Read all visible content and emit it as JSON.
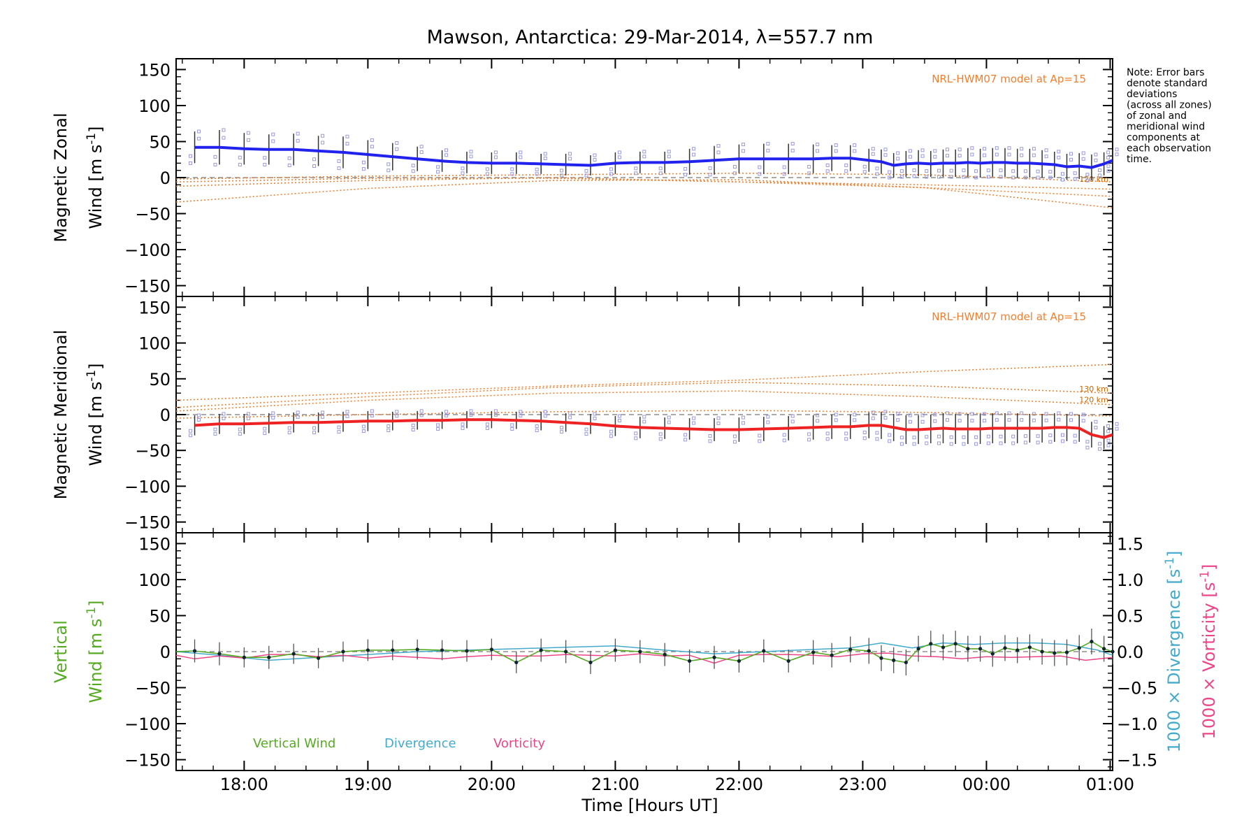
{
  "chart_data": {
    "type": "line",
    "title": "Mawson, Antarctica: 29-Mar-2014, λ=557.7 nm",
    "xlabel": "Time [Hours UT]",
    "x_unit": "hours UT (values >24 are after midnight)",
    "xlim": [
      17.45,
      25.02
    ],
    "xticks": [
      {
        "value": 18,
        "label": "18:00"
      },
      {
        "value": 19,
        "label": "19:00"
      },
      {
        "value": 20,
        "label": "20:00"
      },
      {
        "value": 21,
        "label": "21:00"
      },
      {
        "value": 22,
        "label": "22:00"
      },
      {
        "value": 23,
        "label": "23:00"
      },
      {
        "value": 24,
        "label": "00:00"
      },
      {
        "value": 25,
        "label": "01:00"
      }
    ],
    "note": "Note: Error bars denote standard deviations (across all zones) of zonal and meridional wind components at each observation time.",
    "note_lines": [
      "Note: Error bars",
      "denote standard",
      "deviations",
      "(across all zones)",
      "of zonal and",
      "meridional wind",
      "components at",
      "each observation",
      "time."
    ],
    "panels": [
      {
        "name": "zonal",
        "ylabel_line1": "Magnetic Zonal",
        "ylabel_line2": "Wind [m s",
        "ylabel_sup": "-1",
        "ylabel_close": "]",
        "ylim": [
          -165,
          165
        ],
        "yticks": [
          150,
          100,
          50,
          0,
          -50,
          -100,
          -150
        ],
        "ytick_labels": [
          "150",
          "100",
          "50",
          "0",
          "−50",
          "−100",
          "−150"
        ],
        "model_label": "NRL-HWM07 model at Ap=15",
        "model_alt_labels": [
          {
            "text": "120 km",
            "x": 24.75,
            "y": -6
          }
        ],
        "colors": {
          "series": "#2222ee",
          "points": "#9999dd",
          "model": "#f08030",
          "errorbar": "#333333"
        },
        "series": {
          "name": "Magnetic Zonal Wind",
          "x": [
            17.6,
            17.8,
            18.0,
            18.2,
            18.4,
            18.6,
            18.8,
            19.0,
            19.2,
            19.4,
            19.6,
            19.8,
            20.0,
            20.2,
            20.4,
            20.6,
            20.8,
            21.0,
            21.2,
            21.4,
            21.6,
            21.8,
            22.0,
            22.2,
            22.4,
            22.6,
            22.75,
            22.9,
            23.05,
            23.15,
            23.25,
            23.35,
            23.45,
            23.55,
            23.65,
            23.75,
            23.85,
            23.95,
            24.05,
            24.15,
            24.25,
            24.35,
            24.45,
            24.55,
            24.65,
            24.75,
            24.85,
            24.95,
            25.02
          ],
          "y": [
            42,
            42,
            40,
            39,
            39,
            37,
            35,
            32,
            29,
            26,
            23,
            21,
            20,
            20,
            19,
            18,
            17,
            20,
            21,
            21,
            22,
            24,
            26,
            26,
            26,
            26,
            27,
            27,
            24,
            22,
            17,
            19,
            20,
            19,
            20,
            20,
            21,
            20,
            21,
            21,
            20,
            20,
            19,
            18,
            15,
            16,
            14,
            19,
            24
          ],
          "err": [
            22,
            24,
            22,
            21,
            22,
            21,
            22,
            20,
            19,
            17,
            15,
            15,
            15,
            15,
            14,
            15,
            14,
            15,
            15,
            15,
            18,
            20,
            20,
            21,
            21,
            20,
            18,
            18,
            16,
            17,
            17,
            18,
            18,
            18,
            19,
            19,
            20,
            20,
            20,
            20,
            20,
            20,
            19,
            18,
            18,
            18,
            18,
            16,
            15
          ]
        },
        "models": [
          {
            "x": [
              17.45,
              19.0,
              20.5,
              22.0,
              23.5,
              25.02
            ],
            "y": [
              -34,
              -15,
              -4,
              -3,
              -14,
              -42
            ]
          },
          {
            "x": [
              17.45,
              19.0,
              20.5,
              22.0,
              23.5,
              25.02
            ],
            "y": [
              -12,
              -4,
              0,
              -6,
              -14,
              -26
            ]
          },
          {
            "x": [
              17.45,
              19.0,
              20.5,
              22.0,
              23.5,
              25.02
            ],
            "y": [
              -6,
              -1,
              -1,
              -6,
              -10,
              -16
            ]
          },
          {
            "x": [
              17.45,
              19.0,
              20.5,
              22.0,
              23.5,
              25.02
            ],
            "y": [
              -2,
              2,
              4,
              6,
              4,
              -6
            ]
          }
        ]
      },
      {
        "name": "meridional",
        "ylabel_line1": "Magnetic Meridional",
        "ylabel_line2": "Wind [m s",
        "ylabel_sup": "-1",
        "ylabel_close": "]",
        "ylim": [
          -165,
          165
        ],
        "yticks": [
          150,
          100,
          50,
          0,
          -50,
          -100,
          -150
        ],
        "ytick_labels": [
          "150",
          "100",
          "50",
          "0",
          "−50",
          "−100",
          "−150"
        ],
        "model_label": "NRL-HWM07 model at Ap=15",
        "model_alt_labels": [
          {
            "text": "130 km",
            "x": 24.75,
            "y": 32
          },
          {
            "text": "120 km",
            "x": 24.75,
            "y": 17
          }
        ],
        "colors": {
          "series": "#ee2222",
          "points": "#9999dd",
          "model": "#f08030",
          "errorbar": "#333333"
        },
        "series": {
          "name": "Magnetic Meridional Wind",
          "x": [
            17.6,
            17.8,
            18.0,
            18.2,
            18.4,
            18.6,
            18.8,
            19.0,
            19.2,
            19.4,
            19.6,
            19.8,
            20.0,
            20.2,
            20.4,
            20.6,
            20.8,
            21.0,
            21.2,
            21.4,
            21.6,
            21.8,
            22.0,
            22.2,
            22.4,
            22.6,
            22.75,
            22.9,
            23.05,
            23.15,
            23.25,
            23.35,
            23.45,
            23.55,
            23.65,
            23.75,
            23.85,
            23.95,
            24.05,
            24.15,
            24.25,
            24.35,
            24.45,
            24.55,
            24.65,
            24.75,
            24.85,
            24.95,
            25.02
          ],
          "y": [
            -15,
            -13,
            -13,
            -12,
            -11,
            -11,
            -10,
            -9,
            -9,
            -8,
            -8,
            -7,
            -7,
            -8,
            -9,
            -11,
            -13,
            -16,
            -18,
            -19,
            -20,
            -21,
            -21,
            -20,
            -19,
            -18,
            -17,
            -17,
            -15,
            -15,
            -18,
            -21,
            -21,
            -20,
            -19,
            -20,
            -20,
            -20,
            -19,
            -19,
            -19,
            -19,
            -19,
            -18,
            -18,
            -19,
            -28,
            -32,
            -28
          ],
          "err": [
            14,
            14,
            14,
            14,
            14,
            14,
            14,
            14,
            13,
            13,
            12,
            12,
            12,
            12,
            13,
            13,
            14,
            14,
            15,
            15,
            15,
            16,
            17,
            17,
            17,
            17,
            17,
            17,
            18,
            19,
            19,
            20,
            20,
            20,
            21,
            21,
            21,
            21,
            21,
            21,
            21,
            20,
            20,
            20,
            19,
            19,
            18,
            16,
            15
          ]
        },
        "models": [
          {
            "x": [
              17.45,
              19.0,
              20.5,
              22.0,
              23.5,
              25.02
            ],
            "y": [
              20,
              30,
              40,
              48,
              60,
              70
            ]
          },
          {
            "x": [
              17.45,
              19.0,
              20.5,
              22.0,
              23.5,
              25.02
            ],
            "y": [
              10,
              25,
              38,
              45,
              40,
              30
            ]
          },
          {
            "x": [
              17.45,
              19.0,
              20.5,
              22.0,
              23.5,
              25.02
            ],
            "y": [
              5,
              20,
              30,
              33,
              25,
              14
            ]
          },
          {
            "x": [
              17.45,
              19.0,
              20.5,
              22.0,
              23.5,
              25.02
            ],
            "y": [
              -5,
              0,
              4,
              6,
              3,
              -2
            ]
          }
        ]
      },
      {
        "name": "vertical",
        "ylabel_line1": "Vertical",
        "ylabel_line2": "Wind [m s",
        "ylabel_sup": "-1",
        "ylabel_close": "]",
        "ylim": [
          -165,
          165
        ],
        "yticks": [
          150,
          100,
          50,
          0,
          -50,
          -100,
          -150
        ],
        "ytick_labels": [
          "150",
          "100",
          "50",
          "0",
          "−50",
          "−100",
          "−150"
        ],
        "right_axis": {
          "ylim": [
            -1.65,
            1.65
          ],
          "yticks": [
            1.5,
            1.0,
            0.5,
            0.0,
            -0.5,
            -1.0,
            -1.5
          ],
          "ytick_labels": [
            "1.5",
            "1.0",
            "0.5",
            "0.0",
            "−0.5",
            "−1.0",
            "−1.5"
          ],
          "label1": "1000 × Divergence [s",
          "label2": "1000 × Vorticity [s",
          "label_sup": "-1",
          "label_close": "]"
        },
        "legend": [
          "Vertical Wind",
          "Divergence",
          "Vorticity"
        ],
        "colors": {
          "vertical": "#55aa22",
          "divergence": "#44aacc",
          "vorticity": "#ee4488",
          "errorbar": "#333333"
        },
        "vertical_wind": {
          "x": [
            17.45,
            17.6,
            17.8,
            18.0,
            18.2,
            18.4,
            18.6,
            18.8,
            19.0,
            19.2,
            19.4,
            19.6,
            19.8,
            20.0,
            20.2,
            20.4,
            20.6,
            20.8,
            21.0,
            21.2,
            21.4,
            21.6,
            21.8,
            22.0,
            22.2,
            22.4,
            22.6,
            22.75,
            22.9,
            23.05,
            23.15,
            23.25,
            23.35,
            23.45,
            23.55,
            23.65,
            23.75,
            23.85,
            23.95,
            24.05,
            24.15,
            24.25,
            24.35,
            24.45,
            24.55,
            24.65,
            24.75,
            24.85,
            24.95,
            25.02
          ],
          "y": [
            0,
            1,
            -3,
            -8,
            -8,
            -3,
            -9,
            0,
            2,
            2,
            3,
            2,
            1,
            3,
            -15,
            2,
            0,
            -15,
            2,
            0,
            -4,
            -13,
            -8,
            -13,
            1,
            -13,
            -1,
            -5,
            3,
            1,
            -9,
            -12,
            -15,
            4,
            11,
            6,
            11,
            4,
            4,
            -3,
            5,
            2,
            6,
            0,
            -2,
            -1,
            5,
            14,
            4,
            0
          ],
          "err": [
            0,
            16,
            16,
            14,
            16,
            14,
            14,
            14,
            15,
            14,
            14,
            14,
            15,
            15,
            15,
            16,
            16,
            16,
            16,
            16,
            16,
            16,
            16,
            16,
            16,
            16,
            17,
            17,
            18,
            18,
            18,
            18,
            18,
            18,
            18,
            18,
            18,
            18,
            18,
            18,
            18,
            18,
            18,
            18,
            18,
            18,
            18,
            18,
            18,
            18
          ]
        },
        "divergence": {
          "x": [
            17.45,
            17.8,
            18.2,
            18.6,
            19.0,
            19.4,
            19.8,
            20.2,
            20.6,
            21.0,
            21.4,
            21.8,
            22.2,
            22.6,
            22.9,
            23.15,
            23.4,
            23.65,
            23.9,
            24.15,
            24.4,
            24.65,
            24.9,
            25.02
          ],
          "y": [
            0.0,
            -0.05,
            -0.12,
            -0.08,
            -0.04,
            0.0,
            0.02,
            0.04,
            0.06,
            0.08,
            0.02,
            -0.03,
            0.0,
            0.03,
            0.05,
            0.12,
            0.05,
            0.12,
            0.1,
            0.12,
            0.12,
            0.1,
            0.02,
            -0.05
          ]
        },
        "vorticity": {
          "x": [
            17.45,
            17.6,
            17.8,
            18.0,
            18.2,
            18.4,
            18.6,
            18.8,
            19.0,
            19.2,
            19.4,
            19.6,
            19.8,
            20.0,
            20.2,
            20.4,
            20.6,
            20.8,
            21.0,
            21.2,
            21.4,
            21.6,
            21.8,
            22.0,
            22.2,
            22.4,
            22.6,
            22.8,
            23.0,
            23.2,
            23.4,
            23.6,
            23.8,
            24.0,
            24.2,
            24.4,
            24.6,
            24.8,
            25.02
          ],
          "y": [
            -0.05,
            -0.1,
            -0.06,
            -0.09,
            -0.04,
            -0.04,
            -0.07,
            -0.05,
            -0.09,
            -0.06,
            -0.08,
            -0.1,
            -0.07,
            -0.05,
            -0.06,
            -0.06,
            -0.04,
            -0.05,
            -0.06,
            -0.03,
            -0.06,
            -0.05,
            -0.16,
            -0.05,
            -0.04,
            -0.04,
            -0.05,
            -0.07,
            -0.03,
            -0.02,
            -0.06,
            -0.07,
            -0.1,
            -0.07,
            -0.08,
            -0.07,
            -0.06,
            -0.12,
            -0.08
          ]
        }
      }
    ]
  }
}
